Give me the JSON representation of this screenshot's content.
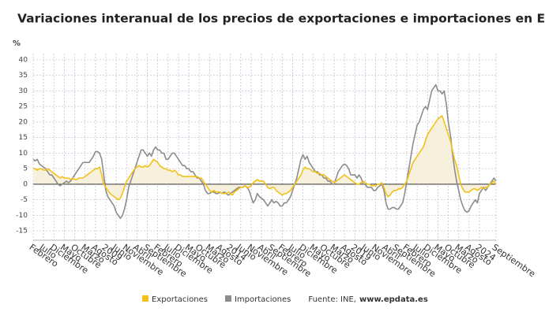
{
  "chart_data": {
    "type": "line",
    "title": "Variaciones interanual de los precios de exportaciones e importaciones en España",
    "y_label": "%",
    "source_label": "Fuente: INE,",
    "source_site": "www.epdata.es",
    "categories": [
      "Febrero",
      null,
      null,
      null,
      null,
      "Julio",
      null,
      null,
      null,
      null,
      "Diciembre",
      null,
      null,
      null,
      null,
      "Mayo",
      null,
      null,
      null,
      null,
      "Octubre",
      null,
      null,
      null,
      null,
      "Marzo",
      null,
      null,
      null,
      null,
      "Agosto",
      null,
      null,
      null,
      null,
      "2009",
      null,
      null,
      null,
      null,
      "Junio",
      null,
      null,
      null,
      null,
      "Noviembre",
      null,
      null,
      null,
      null,
      "Abril",
      null,
      null,
      null,
      null,
      "Septiembre",
      null,
      null,
      null,
      null,
      "Febrero",
      null,
      null,
      null,
      null,
      "Julio",
      null,
      null,
      null,
      null,
      "Diciembre",
      null,
      null,
      null,
      null,
      "Mayo",
      null,
      null,
      null,
      null,
      "Octubre",
      null,
      null,
      null,
      null,
      "Marzo",
      null,
      null,
      null,
      null,
      "Agosto",
      null,
      null,
      null,
      null,
      "2014",
      null,
      null,
      null,
      null,
      "Junio",
      null,
      null,
      null,
      null,
      "Noviembre",
      null,
      null,
      null,
      null,
      "Abril",
      null,
      null,
      null,
      null,
      "Septiembre",
      null,
      null,
      null,
      null,
      "Febrero",
      null,
      null,
      null,
      null,
      "Julio",
      null,
      null,
      null,
      null,
      "Diciembre",
      null,
      null,
      null,
      null,
      "Mayo",
      null,
      null,
      null,
      null,
      "Octubre",
      null,
      null,
      null,
      null,
      "Marzo",
      null,
      null,
      null,
      null,
      "Agosto",
      null,
      null,
      null,
      null,
      "2019",
      null,
      null,
      null,
      null,
      "Junio",
      null,
      null,
      null,
      null,
      "Noviembre",
      null,
      null,
      null,
      null,
      "Abril",
      null,
      null,
      null,
      null,
      "Septiembre",
      null,
      null,
      null,
      null,
      "Febrero",
      null,
      null,
      null,
      null,
      "Julio",
      null,
      null,
      null,
      null,
      "Diciembre",
      null,
      null,
      null,
      null,
      "Mayo",
      null,
      null,
      null,
      null,
      "Octubre",
      null,
      null,
      null,
      null,
      "Marzo",
      null,
      null,
      null,
      null,
      "Agosto",
      null,
      null,
      null,
      null,
      "2024",
      null,
      null,
      null,
      null,
      null,
      null,
      null,
      "Septiembre"
    ],
    "series": [
      {
        "name": "Exportaciones",
        "color": "#f2c21b",
        "fill": "#f7f0dc",
        "values": [
          5,
          5,
          4.5,
          5,
          5,
          4.5,
          4.5,
          5,
          4.5,
          4,
          3.5,
          3,
          2.5,
          2,
          2.5,
          2,
          2,
          2,
          1.5,
          2,
          1.5,
          1.5,
          2,
          2,
          2,
          2.5,
          3,
          3.5,
          4,
          4.5,
          5,
          5,
          5.5,
          3,
          0,
          -1,
          -2,
          -3,
          -3.5,
          -4,
          -4.5,
          -5,
          -4.5,
          -3,
          -1,
          1,
          2,
          3,
          4,
          5,
          5.5,
          6,
          5.5,
          5.5,
          6,
          5.5,
          6,
          7,
          8,
          7.5,
          7,
          6,
          5.5,
          5,
          5,
          4.5,
          4.5,
          4,
          4.5,
          4,
          3,
          3,
          2.5,
          2.5,
          2.5,
          2.5,
          2.5,
          2.5,
          2.5,
          2.5,
          2,
          2,
          1,
          0,
          -1,
          -2,
          -2.5,
          -2,
          -2.5,
          -2.5,
          -2.5,
          -3,
          -3,
          -3,
          -2.5,
          -3,
          -3.5,
          -2.5,
          -2,
          -1.5,
          -1,
          -1,
          -0.5,
          -1,
          -1,
          -0.5,
          0.5,
          1,
          1.5,
          1,
          1,
          1,
          0,
          -1,
          -1.5,
          -1,
          -1,
          -2,
          -2.5,
          -3,
          -3.5,
          -3,
          -3,
          -2.5,
          -2,
          -1,
          0,
          1,
          2,
          3,
          4.5,
          5.5,
          5,
          5,
          4.5,
          4,
          4,
          3.5,
          3.5,
          3,
          3,
          2.5,
          2,
          1.5,
          1,
          0.5,
          1,
          1.5,
          2,
          2.5,
          3,
          2.5,
          2,
          1.5,
          1,
          0.5,
          0,
          0,
          0.5,
          1,
          0.5,
          0,
          0,
          -0.5,
          -0.5,
          -0.5,
          0,
          0,
          0.5,
          -1,
          -3,
          -4,
          -3.5,
          -2.5,
          -2,
          -2,
          -1.5,
          -1.5,
          -1,
          0,
          1,
          3,
          5,
          7,
          8,
          9,
          10,
          11,
          12,
          14,
          16,
          17,
          18,
          19,
          20,
          21,
          21.5,
          22,
          20,
          18,
          16,
          14,
          11,
          8,
          6,
          3,
          0,
          -1.5,
          -2.5,
          -2.5,
          -2.5,
          -2,
          -1.5,
          -1.5,
          -2,
          -1.5,
          -1,
          -1.5,
          -1,
          -1,
          0,
          0.5,
          1,
          0
        ]
      },
      {
        "name": "Importaciones",
        "color": "#8c8c8c",
        "values": [
          8,
          7.5,
          8,
          6.5,
          6,
          5.5,
          5,
          4,
          3,
          3,
          2,
          1,
          0,
          -0.5,
          0,
          0.5,
          1,
          0.5,
          1,
          2,
          3,
          4,
          5,
          6,
          7,
          7,
          7,
          7,
          8,
          9,
          10.5,
          10.5,
          10,
          8,
          3,
          -2,
          -4,
          -5,
          -6,
          -7,
          -9,
          -10,
          -11,
          -10,
          -8,
          -5,
          -1,
          1,
          3,
          5,
          7,
          9,
          11,
          11,
          10,
          9,
          10,
          9,
          11,
          12,
          11,
          11,
          10,
          10,
          8,
          8,
          9,
          10,
          10,
          9,
          8,
          7,
          6,
          6,
          5,
          5,
          4,
          4,
          3,
          2,
          2,
          1,
          0,
          -2,
          -3,
          -3,
          -2.5,
          -2.5,
          -3,
          -3,
          -2.5,
          -3,
          -2.5,
          -3,
          -3.5,
          -3,
          -2.5,
          -2,
          -1.5,
          -1,
          -1,
          -1,
          -0.5,
          -1,
          -2,
          -4,
          -6,
          -5,
          -3,
          -4,
          -4.5,
          -5,
          -6,
          -7,
          -6,
          -5,
          -6,
          -5.5,
          -6,
          -7,
          -7,
          -6,
          -6,
          -5,
          -4,
          -2,
          0,
          2,
          5,
          8,
          9.5,
          8,
          9,
          7,
          6,
          5,
          4,
          4,
          3,
          3,
          2,
          2,
          1,
          1,
          0,
          0,
          2,
          4,
          5,
          6,
          6.5,
          6,
          5,
          3,
          3,
          3,
          2,
          3,
          2,
          0,
          0,
          -1,
          -1,
          -1,
          -2,
          -2,
          -1,
          -0.5,
          0,
          -2,
          -6,
          -8,
          -8,
          -7.5,
          -7.5,
          -8,
          -8,
          -7,
          -6,
          -3,
          1,
          5,
          9,
          13,
          16,
          19,
          20,
          22,
          24,
          25,
          24,
          27,
          30,
          31,
          32,
          30,
          30,
          29,
          30,
          26,
          20,
          16,
          10,
          5,
          1,
          -2,
          -5,
          -7,
          -8.5,
          -9,
          -8.5,
          -7,
          -6,
          -5,
          -6,
          -3,
          -2,
          -1,
          -2,
          -1,
          0,
          1,
          2,
          1
        ]
      }
    ],
    "ylim": [
      -18,
      42
    ],
    "yticks": [
      40,
      35,
      30,
      25,
      20,
      15,
      10,
      5,
      0,
      -5,
      -10,
      -15
    ],
    "grid": true
  }
}
